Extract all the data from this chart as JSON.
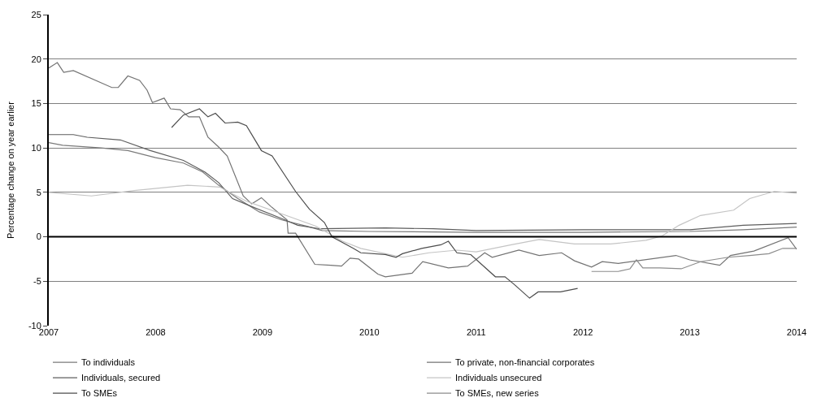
{
  "chart_data": {
    "type": "line",
    "ylabel": "Percentage change on year earlier",
    "xlim": [
      2007,
      2014
    ],
    "xticks": [
      2007,
      2008,
      2009,
      2010,
      2011,
      2012,
      2013,
      2014
    ],
    "ylim": [
      -10,
      25
    ],
    "yticks": [
      -10,
      -5,
      0,
      5,
      10,
      15,
      20,
      25
    ],
    "grid": "y",
    "legend": "bottom",
    "line_style": "solid",
    "marker": "none",
    "ref_lines": [
      {
        "axis": "y",
        "value": 0,
        "color": "#000000"
      }
    ],
    "series": [
      {
        "name": "To individuals",
        "color": "#7a7a7a",
        "x": [
          2007.0,
          2007.13,
          2007.49,
          2007.74,
          2008.0,
          2008.26,
          2008.44,
          2008.59,
          2008.77,
          2008.97,
          2009.18,
          2009.41,
          2009.56,
          2010.0,
          2011.0,
          2012.0,
          2013.0,
          2013.5,
          2014.0
        ],
        "values": [
          10.6,
          10.3,
          10.0,
          9.7,
          8.9,
          8.3,
          7.3,
          5.8,
          4.3,
          2.8,
          1.9,
          1.2,
          0.7,
          0.6,
          0.5,
          0.5,
          0.6,
          0.8,
          1.1
        ]
      },
      {
        "name": "To private, non-financial corporates",
        "color": "#737373",
        "x": [
          2007.0,
          2007.08,
          2007.14,
          2007.23,
          2007.59,
          2007.65,
          2007.74,
          2007.85,
          2007.92,
          2007.97,
          2008.08,
          2008.14,
          2008.23,
          2008.31,
          2008.41,
          2008.49,
          2008.59,
          2008.67,
          2008.82,
          2008.9,
          2008.99,
          2009.08,
          2009.23,
          2009.24,
          2009.31,
          2009.49,
          2009.64,
          2009.74,
          2009.82,
          2009.9,
          2010.08,
          2010.15,
          2010.4,
          2010.5,
          2010.74,
          2010.92,
          2011.08,
          2011.15,
          2011.4,
          2011.59,
          2011.8,
          2011.92,
          2012.08,
          2012.18,
          2012.33,
          2012.87,
          2013.0,
          2013.28,
          2013.38,
          2013.6,
          2013.92,
          2014.0
        ],
        "values": [
          19.0,
          19.6,
          18.5,
          18.7,
          16.8,
          16.8,
          18.1,
          17.6,
          16.5,
          15.1,
          15.6,
          14.4,
          14.3,
          13.5,
          13.5,
          11.2,
          10.1,
          9.1,
          4.6,
          3.7,
          4.4,
          3.4,
          1.9,
          0.4,
          0.4,
          -3.1,
          -3.2,
          -3.3,
          -2.4,
          -2.5,
          -4.2,
          -4.5,
          -4.1,
          -2.8,
          -3.5,
          -3.3,
          -1.8,
          -2.3,
          -1.5,
          -2.1,
          -1.8,
          -2.7,
          -3.4,
          -2.8,
          -3.0,
          -2.1,
          -2.6,
          -3.2,
          -2.1,
          -1.6,
          -0.1,
          -1.4
        ]
      },
      {
        "name": "Individuals, secured",
        "color": "#5e5e5e",
        "x": [
          2007.0,
          2007.23,
          2007.36,
          2007.67,
          2007.95,
          2008.26,
          2008.46,
          2008.59,
          2008.72,
          2008.9,
          2009.15,
          2009.33,
          2009.54,
          2010.15,
          2010.6,
          2011.0,
          2012.0,
          2013.0,
          2013.5,
          2014.0
        ],
        "values": [
          11.5,
          11.5,
          11.2,
          10.9,
          9.7,
          8.6,
          7.3,
          6.1,
          4.3,
          3.4,
          2.2,
          1.3,
          0.9,
          1.0,
          0.9,
          0.7,
          0.8,
          0.8,
          1.3,
          1.5
        ]
      },
      {
        "name": "Individuals unsecured",
        "color": "#c4c4c4",
        "x": [
          2007.0,
          2007.4,
          2007.8,
          2008.3,
          2008.6,
          2008.85,
          2009.2,
          2009.5,
          2009.75,
          2009.92,
          2010.31,
          2010.56,
          2010.82,
          2011.0,
          2011.33,
          2011.59,
          2011.92,
          2012.26,
          2012.59,
          2012.74,
          2012.9,
          2013.1,
          2013.41,
          2013.56,
          2013.79,
          2014.0
        ],
        "values": [
          5.0,
          4.6,
          5.2,
          5.8,
          5.6,
          4.0,
          2.5,
          1.2,
          -0.5,
          -1.3,
          -2.3,
          -1.8,
          -1.5,
          -1.7,
          -0.9,
          -0.3,
          -0.8,
          -0.8,
          -0.4,
          0.1,
          1.3,
          2.4,
          3.0,
          4.3,
          5.1,
          4.9
        ]
      },
      {
        "name": "To SMEs",
        "color": "#4d4d4d",
        "x": [
          2008.15,
          2008.26,
          2008.41,
          2008.49,
          2008.56,
          2008.65,
          2008.77,
          2008.85,
          2008.99,
          2009.09,
          2009.31,
          2009.44,
          2009.58,
          2009.65,
          2009.85,
          2009.92,
          2010.15,
          2010.25,
          2010.31,
          2010.49,
          2010.67,
          2010.74,
          2010.82,
          2010.95,
          2011.18,
          2011.27,
          2011.36,
          2011.5,
          2011.58,
          2011.79,
          2011.95
        ],
        "values": [
          12.3,
          13.7,
          14.4,
          13.5,
          13.9,
          12.8,
          12.9,
          12.5,
          9.7,
          9.1,
          5.1,
          3.1,
          1.6,
          0.0,
          -1.3,
          -1.8,
          -2.0,
          -2.3,
          -1.9,
          -1.3,
          -0.9,
          -0.5,
          -1.8,
          -2.0,
          -4.5,
          -4.5,
          -5.4,
          -6.9,
          -6.2,
          -6.2,
          -5.8
        ]
      },
      {
        "name": "To SMEs, new series",
        "color": "#8c8c8c",
        "x": [
          2012.08,
          2012.33,
          2012.44,
          2012.5,
          2012.56,
          2012.72,
          2012.92,
          2013.1,
          2013.36,
          2013.56,
          2013.74,
          2013.87,
          2014.0
        ],
        "values": [
          -3.9,
          -3.9,
          -3.6,
          -2.6,
          -3.5,
          -3.5,
          -3.6,
          -2.8,
          -2.3,
          -2.1,
          -1.9,
          -1.3,
          -1.3
        ]
      }
    ]
  }
}
